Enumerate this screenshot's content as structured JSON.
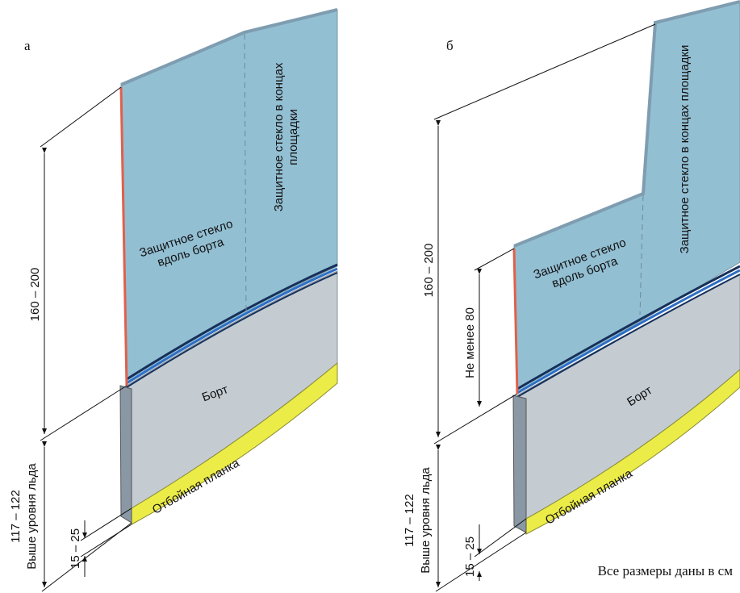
{
  "panels": [
    {
      "label": "а",
      "height": "160 – 200",
      "ice_height": "117 – 122",
      "ice_caption": "Выше уровня льда",
      "fender_height": "15 – 25",
      "glass_side": [
        "Защитное стекло",
        "вдоль борта"
      ],
      "glass_end": [
        "Защитное стекло в концах",
        "площадки"
      ],
      "board": "Борт",
      "fender": "Отбойная планка"
    },
    {
      "label": "б",
      "height": "160 – 200",
      "min_height": "Не менее 80",
      "ice_height": "117 – 122",
      "ice_caption": "Выше уровня льда",
      "fender_height": "15 – 25",
      "glass_side": [
        "Защитное стекло",
        "вдоль борта"
      ],
      "glass_end_single": "Защитное стекло в концах площадки",
      "board": "Борт",
      "fender": "Отбойная планка"
    }
  ],
  "note": "Все размеры даны в см"
}
